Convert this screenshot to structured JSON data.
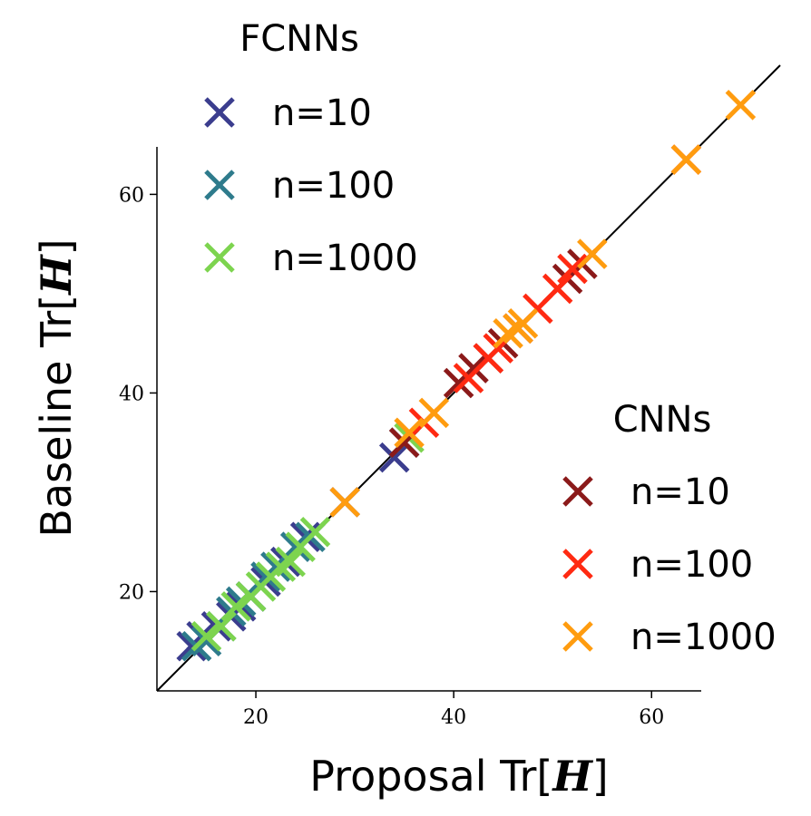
{
  "chart_data": {
    "type": "scatter",
    "xlabel": {
      "prefix": "Proposal Tr",
      "open": "[",
      "symbol": "H",
      "close": "]"
    },
    "ylabel": {
      "prefix": "Baseline Tr",
      "open": "[",
      "symbol": "H",
      "close": "]"
    },
    "xlim": [
      10,
      73
    ],
    "ylim": [
      10,
      73
    ],
    "x_ticks": [
      20,
      40,
      60
    ],
    "y_ticks": [
      20,
      40,
      60
    ],
    "grid": false,
    "identity_line": true,
    "legends": [
      {
        "title": "FCNNs",
        "placement": "top-left",
        "entries": [
          "n=10",
          "n=100",
          "n=1000"
        ]
      },
      {
        "title": "CNNs",
        "placement": "bottom-right",
        "entries": [
          "n=10",
          "n=100",
          "n=1000"
        ]
      }
    ],
    "series": [
      {
        "group": "FCNNs",
        "label": "n=10",
        "color": "#3b3d8e",
        "x": [
          13.5,
          14.5,
          16,
          17.5,
          18.5,
          19.5,
          21,
          23,
          25,
          29,
          34
        ],
        "y": [
          14.5,
          15.5,
          16.5,
          17.5,
          18.5,
          19.5,
          21,
          23,
          25.5,
          29,
          33.5
        ]
      },
      {
        "group": "FCNNs",
        "label": "n=100",
        "color": "#2e7b8c",
        "x": [
          14,
          15,
          16.5,
          17.5,
          18.5,
          19.5,
          21,
          22,
          24,
          25.5,
          35
        ],
        "y": [
          14.5,
          15,
          16.5,
          18,
          19,
          19.5,
          21.5,
          22.5,
          24.5,
          25.5,
          35
        ]
      },
      {
        "group": "FCNNs",
        "label": "n=1000",
        "color": "#7dd44f",
        "x": [
          15,
          16.5,
          18,
          19.5,
          20.5,
          21.5,
          22.5,
          23.5,
          24.5,
          26,
          35.5
        ],
        "y": [
          15.5,
          16.5,
          18.5,
          19.5,
          20.5,
          21.5,
          22.5,
          23,
          24.5,
          26,
          35.5
        ]
      },
      {
        "group": "CNNs",
        "label": "n=10",
        "color": "#8b1a1a",
        "x": [
          35,
          40.5,
          42,
          43.5,
          45,
          46.5,
          51.5,
          53
        ],
        "y": [
          35,
          41,
          42.5,
          43.5,
          45,
          46.5,
          51.5,
          53
        ]
      },
      {
        "group": "CNNs",
        "label": "n=100",
        "color": "#ff2a12",
        "x": [
          37,
          41.5,
          43.5,
          44.5,
          46.5,
          48.5,
          50.5,
          52,
          63.5
        ],
        "y": [
          37,
          41.5,
          43.5,
          44.5,
          46.5,
          48.5,
          50.5,
          52.5,
          63.5
        ]
      },
      {
        "group": "CNNs",
        "label": "n=1000",
        "color": "#ff9c0f",
        "x": [
          29,
          35.5,
          38,
          45.5,
          46.5,
          47,
          54,
          63.5,
          69
        ],
        "y": [
          29,
          36,
          38,
          46,
          46.5,
          47,
          54,
          63.5,
          69
        ]
      }
    ]
  }
}
